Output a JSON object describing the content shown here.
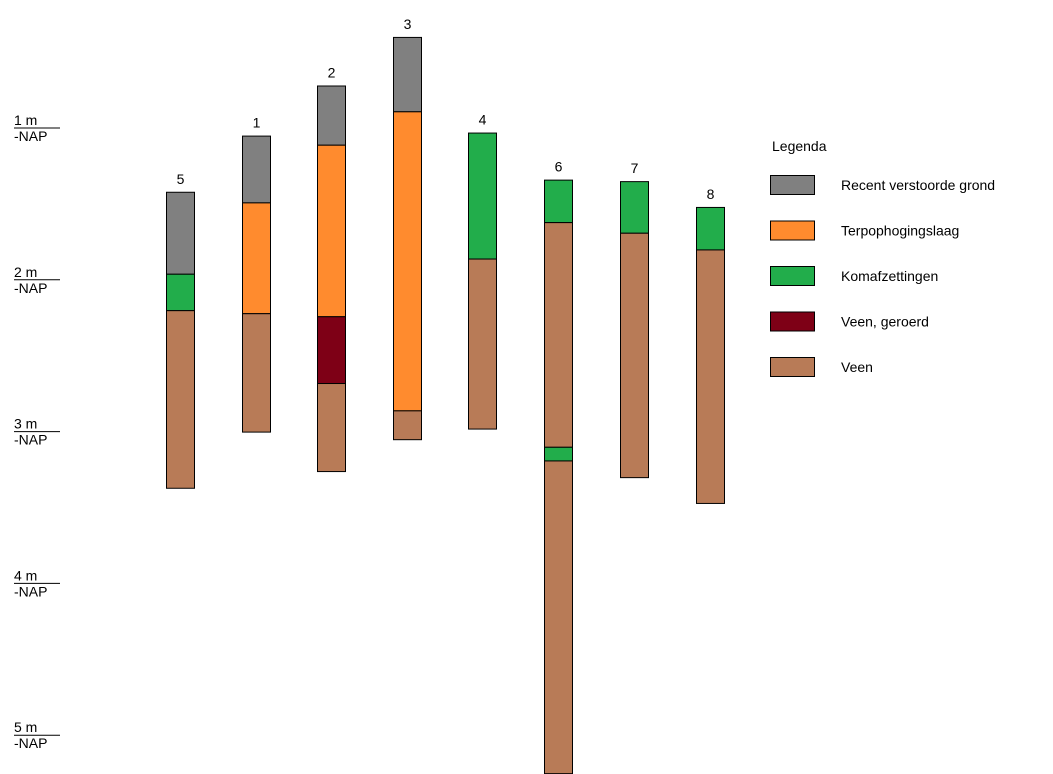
{
  "chart_data": {
    "type": "stacked-column-profile",
    "depth_unit_label": "-NAP",
    "depth_axis": [
      {
        "value": 1,
        "label": "1 m"
      },
      {
        "value": 2,
        "label": "2 m"
      },
      {
        "value": 3,
        "label": "3 m"
      },
      {
        "value": 4,
        "label": "4 m"
      },
      {
        "value": 5,
        "label": "5 m"
      }
    ],
    "layer_types": {
      "recent": {
        "label": "Recent verstoorde grond",
        "color": "#808080"
      },
      "terp": {
        "label": "Terpophogingslaag",
        "color": "#ff8b2e"
      },
      "koma": {
        "label": "Komafzettingen",
        "color": "#22ad4b"
      },
      "veen_geroerd": {
        "label": "Veen, geroerd",
        "color": "#7e0016"
      },
      "veen": {
        "label": "Veen",
        "color": "#b87b57"
      }
    },
    "legend": {
      "title": "Legenda",
      "placement": "right",
      "order": [
        "recent",
        "terp",
        "koma",
        "veen_geroerd",
        "veen"
      ]
    },
    "columns": [
      {
        "label": "5",
        "layers": [
          {
            "type": "recent",
            "top": 1.42,
            "bottom": 1.96
          },
          {
            "type": "koma",
            "top": 1.96,
            "bottom": 2.2
          },
          {
            "type": "veen",
            "top": 2.2,
            "bottom": 3.37
          }
        ]
      },
      {
        "label": "1",
        "layers": [
          {
            "type": "recent",
            "top": 1.05,
            "bottom": 1.49
          },
          {
            "type": "terp",
            "top": 1.49,
            "bottom": 2.22
          },
          {
            "type": "veen",
            "top": 2.22,
            "bottom": 3.0
          }
        ]
      },
      {
        "label": "2",
        "layers": [
          {
            "type": "recent",
            "top": 0.72,
            "bottom": 1.11
          },
          {
            "type": "terp",
            "top": 1.11,
            "bottom": 2.24
          },
          {
            "type": "veen_geroerd",
            "top": 2.24,
            "bottom": 2.68
          },
          {
            "type": "veen",
            "top": 2.68,
            "bottom": 3.26
          }
        ]
      },
      {
        "label": "3",
        "layers": [
          {
            "type": "recent",
            "top": 0.4,
            "bottom": 0.89
          },
          {
            "type": "terp",
            "top": 0.89,
            "bottom": 2.86
          },
          {
            "type": "veen",
            "top": 2.86,
            "bottom": 3.05
          }
        ]
      },
      {
        "label": "4",
        "layers": [
          {
            "type": "koma",
            "top": 1.03,
            "bottom": 1.86
          },
          {
            "type": "veen",
            "top": 1.86,
            "bottom": 2.98
          }
        ]
      },
      {
        "label": "6",
        "layers": [
          {
            "type": "koma",
            "top": 1.34,
            "bottom": 1.62
          },
          {
            "type": "veen",
            "top": 1.62,
            "bottom": 3.1
          },
          {
            "type": "koma",
            "top": 3.1,
            "bottom": 3.19
          },
          {
            "type": "veen",
            "top": 3.19,
            "bottom": 5.25
          }
        ]
      },
      {
        "label": "7",
        "layers": [
          {
            "type": "koma",
            "top": 1.35,
            "bottom": 1.69
          },
          {
            "type": "veen",
            "top": 1.69,
            "bottom": 3.3
          }
        ]
      },
      {
        "label": "8",
        "layers": [
          {
            "type": "koma",
            "top": 1.52,
            "bottom": 1.8
          },
          {
            "type": "veen",
            "top": 1.8,
            "bottom": 3.47
          }
        ]
      }
    ]
  }
}
